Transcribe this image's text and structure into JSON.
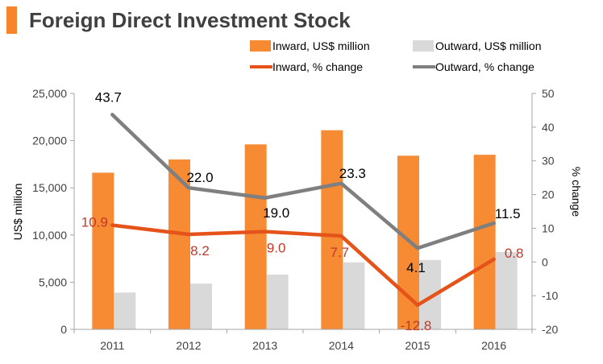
{
  "header": {
    "title": "Foreign Direct Investment Stock"
  },
  "colors": {
    "accent": "#f5842b",
    "inward_bar": "#f68b33",
    "outward_bar": "#d9d9d9",
    "inward_line": "#e5531a",
    "outward_line": "#7f7f7f",
    "inward_label": "#c0392b",
    "outward_label": "#000000",
    "axis_text": "#404040",
    "axis_line": "#a6a6a6"
  },
  "chart_data": {
    "type": "bar",
    "title": "Foreign Direct Investment Stock",
    "categories": [
      "2011",
      "2012",
      "2013",
      "2014",
      "2015",
      "2016"
    ],
    "series": [
      {
        "name": "Inward, US$ million",
        "type": "bar",
        "axis": "left",
        "values": [
          16600,
          18000,
          19600,
          21100,
          18400,
          18500
        ]
      },
      {
        "name": "Outward, US$ million",
        "type": "bar",
        "axis": "left",
        "values": [
          3900,
          4850,
          5800,
          7100,
          7350,
          8200
        ]
      },
      {
        "name": "Inward, % change",
        "type": "line",
        "axis": "right",
        "values": [
          10.9,
          8.2,
          9.0,
          7.7,
          -12.8,
          0.8
        ],
        "labels": [
          "10.9",
          "8.2",
          "9.0",
          "7.7",
          "-12.8",
          "0.8"
        ]
      },
      {
        "name": "Outward, % change",
        "type": "line",
        "axis": "right",
        "values": [
          43.7,
          22.0,
          19.0,
          23.3,
          4.1,
          11.5
        ],
        "labels": [
          "43.7",
          "22.0",
          "19.0",
          "23.3",
          "4.1",
          "11.5"
        ]
      }
    ],
    "ylabel": "US$ million",
    "y2label": "% change",
    "ylim": [
      0,
      25000
    ],
    "y2lim": [
      -20,
      50
    ],
    "yticks": [
      "0",
      "5,000",
      "10,000",
      "15,000",
      "20,000",
      "25,000"
    ],
    "y2ticks": [
      "-20",
      "-10",
      "0",
      "10",
      "20",
      "30",
      "40",
      "50"
    ],
    "legend_position": "top-right",
    "grid": false
  }
}
